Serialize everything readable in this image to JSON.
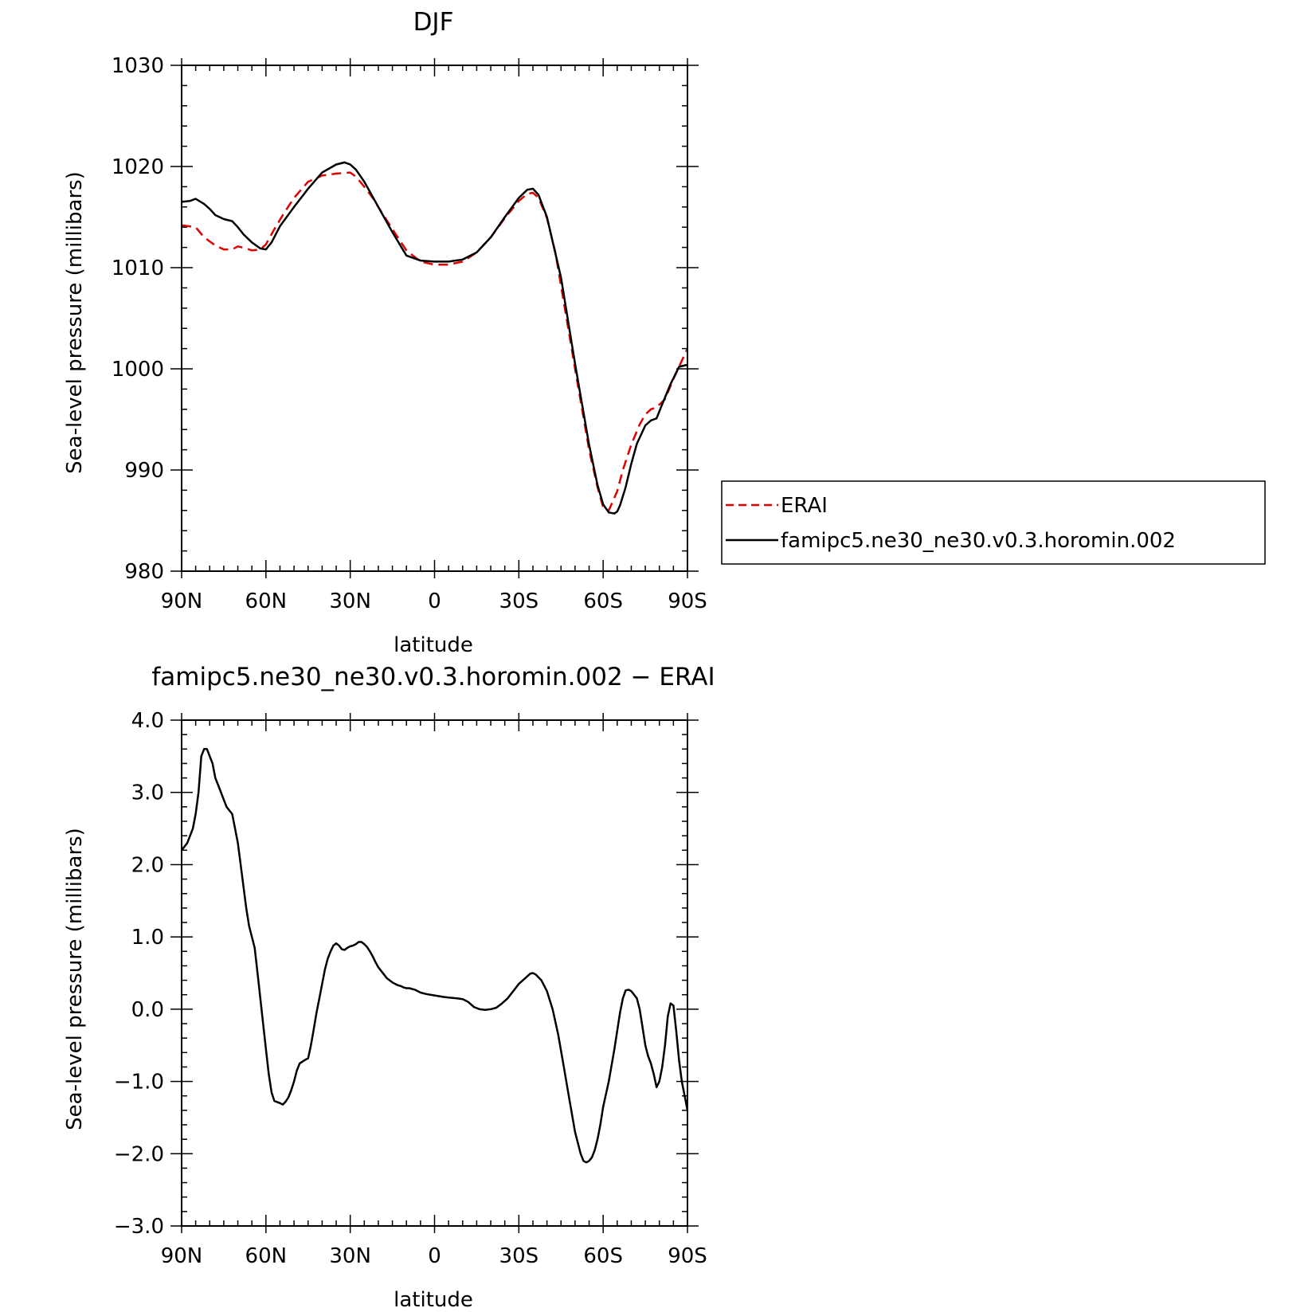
{
  "chart_data": [
    {
      "type": "line",
      "title": "DJF",
      "xlabel": "latitude",
      "ylabel": "Sea-level pressure (millibars)",
      "xlim": [
        90,
        -90
      ],
      "ylim": [
        980,
        1030
      ],
      "x_ticks": [
        {
          "value": 90,
          "label": "90N"
        },
        {
          "value": 60,
          "label": "60N"
        },
        {
          "value": 30,
          "label": "30N"
        },
        {
          "value": 0,
          "label": "0"
        },
        {
          "value": -30,
          "label": "30S"
        },
        {
          "value": -60,
          "label": "60S"
        },
        {
          "value": -90,
          "label": "90S"
        }
      ],
      "y_ticks": [
        {
          "value": 980,
          "label": "980"
        },
        {
          "value": 990,
          "label": "990"
        },
        {
          "value": 1000,
          "label": "1000"
        },
        {
          "value": 1010,
          "label": "1010"
        },
        {
          "value": 1020,
          "label": "1020"
        },
        {
          "value": 1030,
          "label": "1030"
        }
      ],
      "grid": false,
      "legend": "right",
      "series": [
        {
          "name": "ERAI",
          "color": "#e00000",
          "dash": true,
          "x": [
            90,
            85,
            82,
            78,
            75,
            72,
            70,
            67,
            65,
            62,
            60,
            57,
            54,
            50,
            45,
            40,
            35,
            30,
            28,
            25,
            22,
            20,
            15,
            10,
            5,
            0,
            -5,
            -10,
            -15,
            -20,
            -25,
            -30,
            -33,
            -35,
            -37,
            -40,
            -43,
            -45,
            -50,
            -55,
            -58,
            -60,
            -62,
            -65,
            -67,
            -70,
            -73,
            -75,
            -77,
            -79,
            -82,
            -85,
            -88,
            -90
          ],
          "y": [
            1014.2,
            1014.0,
            1013.0,
            1012.2,
            1011.8,
            1011.8,
            1012.1,
            1011.9,
            1011.7,
            1011.8,
            1012.3,
            1013.8,
            1015.2,
            1016.9,
            1018.5,
            1019.1,
            1019.3,
            1019.4,
            1019.0,
            1018.0,
            1016.9,
            1016.0,
            1013.8,
            1011.7,
            1010.6,
            1010.3,
            1010.3,
            1010.6,
            1011.5,
            1013.0,
            1014.9,
            1016.6,
            1017.3,
            1017.4,
            1016.9,
            1014.9,
            1011.5,
            1008.2,
            1000.0,
            992.0,
            988.3,
            986.3,
            986.0,
            987.9,
            990.0,
            992.5,
            994.5,
            995.5,
            996.0,
            996.2,
            997.0,
            999.0,
            1000.8,
            1002.0
          ]
        },
        {
          "name": "famipc5.ne30_ne30.v0.3.horomin.002",
          "color": "#000000",
          "dash": false,
          "x": [
            90,
            87,
            85,
            82,
            80,
            78,
            75,
            72,
            70,
            68,
            65,
            62,
            60,
            58,
            55,
            50,
            45,
            40,
            35,
            32,
            30,
            28,
            25,
            22,
            20,
            15,
            10,
            5,
            0,
            -5,
            -10,
            -15,
            -20,
            -25,
            -30,
            -33,
            -35,
            -37,
            -40,
            -45,
            -50,
            -55,
            -58,
            -60,
            -62,
            -64,
            -65,
            -66,
            -68,
            -70,
            -72,
            -75,
            -77,
            -79,
            -81,
            -84,
            -87,
            -90
          ],
          "y": [
            1016.5,
            1016.6,
            1016.8,
            1016.3,
            1015.8,
            1015.2,
            1014.8,
            1014.6,
            1014.0,
            1013.3,
            1012.5,
            1011.9,
            1011.8,
            1012.5,
            1014.1,
            1016.0,
            1017.8,
            1019.4,
            1020.2,
            1020.4,
            1020.2,
            1019.7,
            1018.5,
            1017.0,
            1016.0,
            1013.5,
            1011.2,
            1010.7,
            1010.6,
            1010.6,
            1010.8,
            1011.5,
            1013.0,
            1015.0,
            1016.9,
            1017.7,
            1017.8,
            1017.2,
            1015.0,
            1009.0,
            1000.5,
            992.5,
            988.5,
            986.6,
            985.8,
            985.7,
            985.9,
            986.5,
            988.3,
            990.6,
            992.6,
            994.4,
            994.9,
            995.1,
            996.5,
            998.5,
            1000.2,
            1000.4
          ]
        }
      ]
    },
    {
      "type": "line",
      "title": "famipc5.ne30_ne30.v0.3.horomin.002 − ERAI",
      "xlabel": "latitude",
      "ylabel": "Sea-level pressure (millibars)",
      "xlim": [
        90,
        -90
      ],
      "ylim": [
        -3.0,
        4.0
      ],
      "x_ticks": [
        {
          "value": 90,
          "label": "90N"
        },
        {
          "value": 60,
          "label": "60N"
        },
        {
          "value": 30,
          "label": "30N"
        },
        {
          "value": 0,
          "label": "0"
        },
        {
          "value": -30,
          "label": "30S"
        },
        {
          "value": -60,
          "label": "60S"
        },
        {
          "value": -90,
          "label": "90S"
        }
      ],
      "y_ticks": [
        {
          "value": -3.0,
          "label": "−3.0"
        },
        {
          "value": -2.0,
          "label": "−2.0"
        },
        {
          "value": -1.0,
          "label": "−1.0"
        },
        {
          "value": 0.0,
          "label": "0.0"
        },
        {
          "value": 1.0,
          "label": "1.0"
        },
        {
          "value": 2.0,
          "label": "2.0"
        },
        {
          "value": 3.0,
          "label": "3.0"
        },
        {
          "value": 4.0,
          "label": "4.0"
        }
      ],
      "grid": false,
      "series": [
        {
          "color": "#000000",
          "dash": false,
          "x": [
            90,
            88,
            86,
            85,
            84,
            83,
            82,
            81,
            80,
            79,
            78,
            77,
            75,
            74,
            72,
            70,
            69,
            68,
            67,
            66,
            64,
            63,
            61,
            60,
            59,
            58,
            57,
            55,
            54,
            53,
            52,
            51,
            50,
            49,
            48,
            46,
            45,
            44,
            43,
            42,
            41,
            40,
            39,
            38,
            37,
            36,
            35,
            34,
            33,
            32,
            31,
            30,
            29,
            28,
            27,
            26,
            25,
            24,
            23,
            22,
            21,
            20,
            19,
            18,
            17,
            16,
            15,
            14,
            13,
            12,
            11,
            10,
            9,
            8,
            7,
            6,
            5,
            3,
            0,
            -3,
            -5,
            -8,
            -10,
            -12,
            -14,
            -16,
            -18,
            -20,
            -22,
            -24,
            -26,
            -28,
            -30,
            -32,
            -34,
            -35,
            -36,
            -38,
            -40,
            -42,
            -44,
            -46,
            -48,
            -50,
            -52,
            -53,
            -54,
            -55,
            -56,
            -57,
            -58,
            -59,
            -60,
            -62,
            -64,
            -66,
            -67,
            -68,
            -69,
            -70,
            -71,
            -72,
            -73,
            -74,
            -75,
            -76,
            -77,
            -78,
            -79,
            -80,
            -81,
            -82,
            -83,
            -84,
            -85,
            -86,
            -87,
            -88,
            -89,
            -90
          ],
          "y": [
            2.2,
            2.3,
            2.5,
            2.7,
            3.0,
            3.5,
            3.6,
            3.6,
            3.5,
            3.4,
            3.2,
            3.1,
            2.9,
            2.8,
            2.7,
            2.3,
            2.0,
            1.7,
            1.4,
            1.15,
            0.85,
            0.5,
            -0.2,
            -0.55,
            -0.9,
            -1.15,
            -1.27,
            -1.3,
            -1.32,
            -1.28,
            -1.22,
            -1.12,
            -1.0,
            -0.85,
            -0.75,
            -0.7,
            -0.68,
            -0.5,
            -0.28,
            -0.05,
            0.15,
            0.35,
            0.55,
            0.7,
            0.8,
            0.88,
            0.91,
            0.88,
            0.83,
            0.82,
            0.85,
            0.87,
            0.88,
            0.9,
            0.93,
            0.93,
            0.9,
            0.86,
            0.8,
            0.73,
            0.65,
            0.58,
            0.53,
            0.48,
            0.43,
            0.4,
            0.37,
            0.35,
            0.33,
            0.32,
            0.3,
            0.29,
            0.29,
            0.28,
            0.27,
            0.25,
            0.23,
            0.21,
            0.19,
            0.17,
            0.16,
            0.15,
            0.14,
            0.1,
            0.03,
            0.0,
            -0.01,
            0.0,
            0.02,
            0.08,
            0.15,
            0.25,
            0.35,
            0.42,
            0.49,
            0.5,
            0.48,
            0.4,
            0.25,
            0.0,
            -0.35,
            -0.8,
            -1.25,
            -1.7,
            -2.0,
            -2.1,
            -2.12,
            -2.1,
            -2.05,
            -1.95,
            -1.8,
            -1.6,
            -1.35,
            -1.0,
            -0.55,
            -0.05,
            0.15,
            0.26,
            0.27,
            0.25,
            0.2,
            0.15,
            0.0,
            -0.25,
            -0.5,
            -0.65,
            -0.75,
            -0.9,
            -1.08,
            -1.0,
            -0.8,
            -0.5,
            -0.1,
            0.08,
            0.05,
            -0.3,
            -0.7,
            -1.0,
            -1.2,
            -1.4
          ]
        }
      ]
    }
  ]
}
